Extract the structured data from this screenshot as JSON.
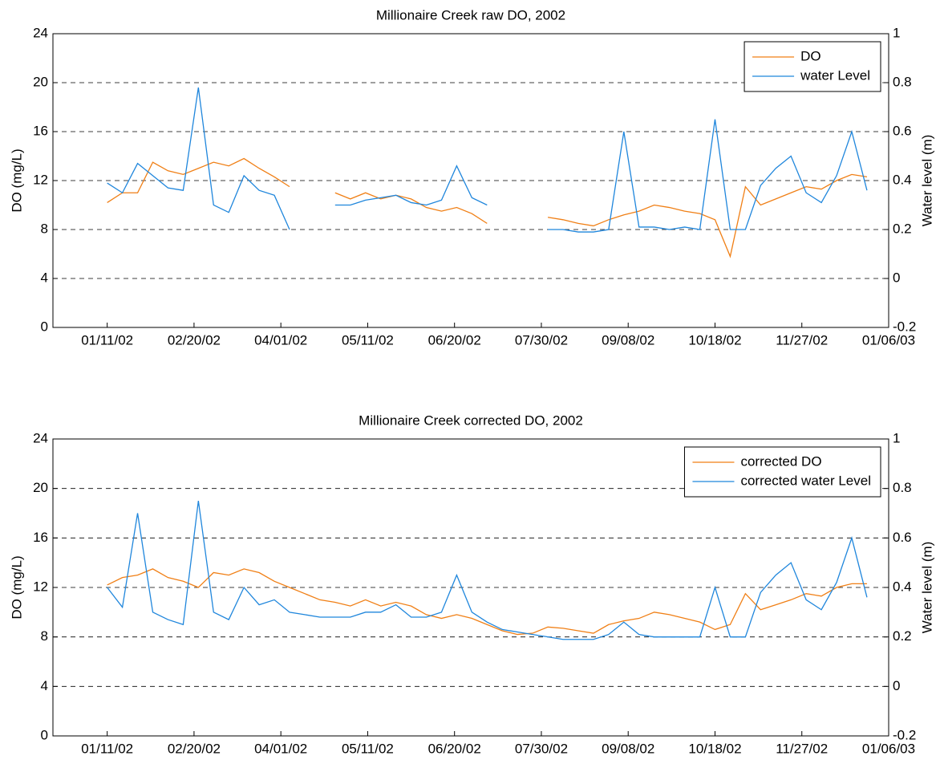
{
  "chart_data": [
    {
      "type": "line",
      "title": "Millionaire Creek raw DO, 2002",
      "y_label": "DO (mg/L)",
      "y2_label": "Water level (m)",
      "x": [
        "01/11/02",
        "01/18/02",
        "01/25/02",
        "02/01/02",
        "02/08/02",
        "02/15/02",
        "02/22/02",
        "03/01/02",
        "03/08/02",
        "03/15/02",
        "03/22/02",
        "03/29/02",
        "04/05/02",
        "04/12/02",
        "04/19/02",
        "04/26/02",
        "05/03/02",
        "05/10/02",
        "05/17/02",
        "05/24/02",
        "05/31/02",
        "06/07/02",
        "06/14/02",
        "06/21/02",
        "06/28/02",
        "07/05/02",
        "07/12/02",
        "07/19/02",
        "07/26/02",
        "08/02/02",
        "08/09/02",
        "08/16/02",
        "08/23/02",
        "08/30/02",
        "09/06/02",
        "09/13/02",
        "09/20/02",
        "09/27/02",
        "10/04/02",
        "10/11/02",
        "10/18/02",
        "10/25/02",
        "11/01/02",
        "11/08/02",
        "11/15/02",
        "11/22/02",
        "11/29/02",
        "12/06/02",
        "12/13/02",
        "12/20/02",
        "12/27/02"
      ],
      "series": [
        {
          "name": "DO",
          "color": "#f07f15",
          "axis": "y",
          "values": [
            10.2,
            11,
            11,
            13.5,
            12.8,
            12.5,
            13,
            13.5,
            13.2,
            13.8,
            13,
            12.3,
            11.5,
            null,
            null,
            11,
            10.5,
            11,
            10.5,
            10.8,
            10.5,
            9.8,
            9.5,
            9.8,
            9.3,
            8.5,
            null,
            null,
            null,
            9,
            8.8,
            8.5,
            8.3,
            8.8,
            9.2,
            9.5,
            10,
            9.8,
            9.5,
            9.3,
            8.8,
            5.8,
            11.5,
            10,
            10.5,
            11,
            11.5,
            11.3,
            12,
            12.5,
            12.3
          ]
        },
        {
          "name": "water Level",
          "color": "#1f86dc",
          "axis": "y2",
          "values": [
            0.39,
            0.35,
            0.47,
            0.42,
            0.37,
            0.36,
            0.78,
            0.3,
            0.27,
            0.42,
            0.36,
            0.34,
            0.2,
            null,
            null,
            0.3,
            0.3,
            0.32,
            0.33,
            0.34,
            0.31,
            0.3,
            0.32,
            0.46,
            0.33,
            0.3,
            null,
            null,
            null,
            0.2,
            0.2,
            0.19,
            0.19,
            0.2,
            0.6,
            0.21,
            0.21,
            0.2,
            0.21,
            0.2,
            0.65,
            0.2,
            0.2,
            0.38,
            0.45,
            0.5,
            0.35,
            0.31,
            0.42,
            0.6,
            0.36
          ]
        }
      ],
      "xlim": [
        "12/17/01",
        "01/06/03"
      ],
      "xticks": [
        "01/11/02",
        "02/20/02",
        "04/01/02",
        "05/11/02",
        "06/20/02",
        "07/30/02",
        "09/08/02",
        "10/18/02",
        "11/27/02",
        "01/06/03"
      ],
      "ylim": [
        0,
        24
      ],
      "yticks": [
        0,
        4,
        8,
        12,
        16,
        20,
        24
      ],
      "y2lim": [
        -0.2,
        1
      ],
      "y2ticks": [
        -0.2,
        0,
        0.2,
        0.4,
        0.6,
        0.8,
        1
      ],
      "grid": true,
      "legend": "upper right"
    },
    {
      "type": "line",
      "title": "Millionaire Creek corrected DO, 2002",
      "y_label": "DO (mg/L)",
      "y2_label": "Water level (m)",
      "x": [
        "01/11/02",
        "01/18/02",
        "01/25/02",
        "02/01/02",
        "02/08/02",
        "02/15/02",
        "02/22/02",
        "03/01/02",
        "03/08/02",
        "03/15/02",
        "03/22/02",
        "03/29/02",
        "04/05/02",
        "04/12/02",
        "04/19/02",
        "04/26/02",
        "05/03/02",
        "05/10/02",
        "05/17/02",
        "05/24/02",
        "05/31/02",
        "06/07/02",
        "06/14/02",
        "06/21/02",
        "06/28/02",
        "07/05/02",
        "07/12/02",
        "07/19/02",
        "07/26/02",
        "08/02/02",
        "08/09/02",
        "08/16/02",
        "08/23/02",
        "08/30/02",
        "09/06/02",
        "09/13/02",
        "09/20/02",
        "09/27/02",
        "10/04/02",
        "10/11/02",
        "10/18/02",
        "10/25/02",
        "11/01/02",
        "11/08/02",
        "11/15/02",
        "11/22/02",
        "11/29/02",
        "12/06/02",
        "12/13/02",
        "12/20/02",
        "12/27/02"
      ],
      "series": [
        {
          "name": "corrected DO",
          "color": "#f07f15",
          "axis": "y",
          "values": [
            12.2,
            12.8,
            13,
            13.5,
            12.8,
            12.5,
            12,
            13.2,
            13,
            13.5,
            13.2,
            12.5,
            12,
            11.5,
            11,
            10.8,
            10.5,
            11,
            10.5,
            10.8,
            10.5,
            9.8,
            9.5,
            9.8,
            9.5,
            9,
            8.5,
            8.2,
            8.3,
            8.8,
            8.7,
            8.5,
            8.3,
            9,
            9.3,
            9.5,
            10,
            9.8,
            9.5,
            9.2,
            8.6,
            9,
            11.5,
            10.2,
            10.6,
            11,
            11.5,
            11.3,
            12,
            12.3,
            12.3
          ]
        },
        {
          "name": "corrected water Level",
          "color": "#1f86dc",
          "axis": "y2",
          "values": [
            0.4,
            0.32,
            0.7,
            0.3,
            0.27,
            0.25,
            0.75,
            0.3,
            0.27,
            0.4,
            0.33,
            0.35,
            0.3,
            0.29,
            0.28,
            0.28,
            0.28,
            0.3,
            0.3,
            0.33,
            0.28,
            0.28,
            0.3,
            0.45,
            0.3,
            0.26,
            0.23,
            0.22,
            0.21,
            0.2,
            0.19,
            0.19,
            0.19,
            0.21,
            0.26,
            0.21,
            0.2,
            0.2,
            0.2,
            0.2,
            0.4,
            0.2,
            0.2,
            0.38,
            0.45,
            0.5,
            0.35,
            0.31,
            0.42,
            0.6,
            0.36
          ]
        }
      ],
      "xlim": [
        "12/17/01",
        "01/06/03"
      ],
      "xticks": [
        "01/11/02",
        "02/20/02",
        "04/01/02",
        "05/11/02",
        "06/20/02",
        "07/30/02",
        "09/08/02",
        "10/18/02",
        "11/27/02",
        "01/06/03"
      ],
      "ylim": [
        0,
        24
      ],
      "yticks": [
        0,
        4,
        8,
        12,
        16,
        20,
        24
      ],
      "y2lim": [
        -0.2,
        1
      ],
      "y2ticks": [
        -0.2,
        0,
        0.2,
        0.4,
        0.6,
        0.8,
        1
      ],
      "grid": true,
      "legend": "upper right"
    }
  ]
}
